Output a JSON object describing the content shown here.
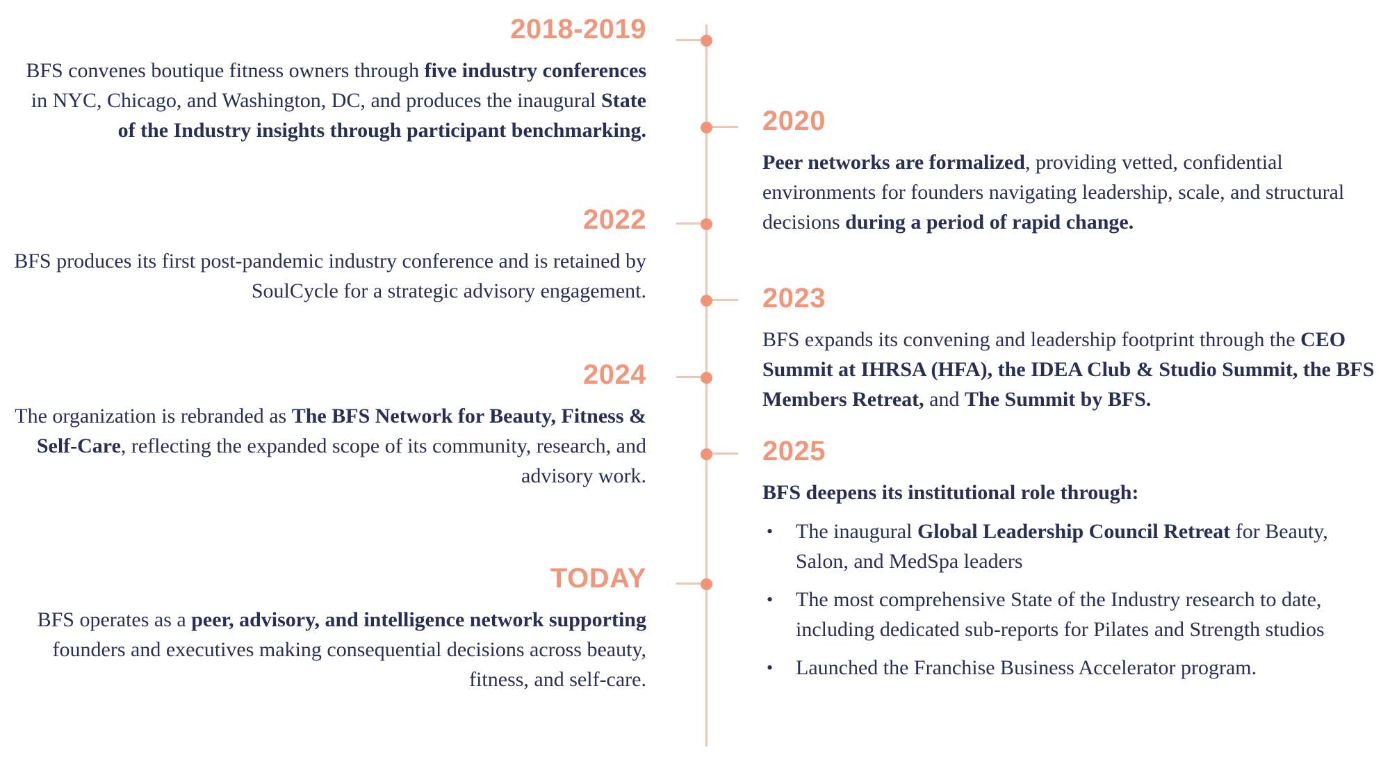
{
  "colors": {
    "background": "#ffffff",
    "year": "#f0967b",
    "dot": "#f09377",
    "line": "#edc6b8",
    "text": "#272f54"
  },
  "entries": [
    {
      "year": "2018-2019",
      "side": "left",
      "runs": [
        {
          "t": "BFS convenes boutique fitness owners through "
        },
        {
          "t": "five industry conferences",
          "b": true
        },
        {
          "t": " in NYC, Chicago, and Washington, DC, and produces the inaugural "
        },
        {
          "t": "State of the Industry insights through participant benchmarking.",
          "b": true
        }
      ]
    },
    {
      "year": "2020",
      "side": "right",
      "runs": [
        {
          "t": "Peer networks are formalized",
          "b": true
        },
        {
          "t": ", providing vetted, confidential environments for founders navigating leadership, scale, and structural decisions "
        },
        {
          "t": "during a period of rapid change.",
          "b": true
        }
      ]
    },
    {
      "year": "2022",
      "side": "left",
      "runs": [
        {
          "t": "BFS produces its first post-pandemic industry conference and is retained by SoulCycle for a strategic advisory engagement."
        }
      ]
    },
    {
      "year": "2023",
      "side": "right",
      "runs": [
        {
          "t": "BFS expands its convening and leadership footprint through the "
        },
        {
          "t": "CEO Summit at IHRSA (HFA), the IDEA Club & Studio Summit, the BFS Members Retreat,",
          "b": true
        },
        {
          "t": " and "
        },
        {
          "t": "The Summit by BFS.",
          "b": true
        }
      ]
    },
    {
      "year": "2024",
      "side": "left",
      "runs": [
        {
          "t": "The organization is rebranded as "
        },
        {
          "t": "The BFS Network for Beauty, Fitness & Self-Care",
          "b": true
        },
        {
          "t": ", reflecting the expanded scope of its community, research, and advisory work."
        }
      ]
    },
    {
      "year": "2025",
      "side": "right",
      "runs": [
        {
          "t": "BFS deepens its institutional role through:",
          "b": true
        }
      ],
      "bullet_glyph": "•",
      "bullets": [
        {
          "runs": [
            {
              "t": "The inaugural "
            },
            {
              "t": "Global Leadership Council Retreat",
              "b": true
            },
            {
              "t": " for Beauty, Salon, and MedSpa leaders"
            }
          ]
        },
        {
          "runs": [
            {
              "t": "The most comprehensive State of the Industry research to date, including dedicated sub-reports for Pilates and Strength studios"
            }
          ]
        },
        {
          "runs": [
            {
              "t": "Launched the Franchise Business Accelerator program."
            }
          ]
        }
      ]
    },
    {
      "year": "TODAY",
      "side": "left",
      "runs": [
        {
          "t": "BFS operates as a "
        },
        {
          "t": "peer, advisory, and intelligence network supporting",
          "b": true
        },
        {
          "t": " founders and executives making consequential decisions across beauty, fitness, and self-care."
        }
      ]
    }
  ]
}
